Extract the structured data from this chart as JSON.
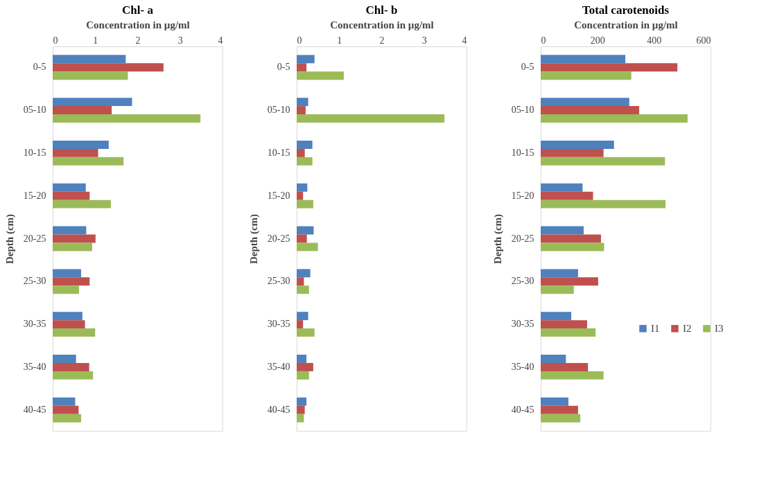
{
  "chart_data": [
    {
      "type": "bar",
      "orientation": "horizontal",
      "title": "Chl- a",
      "xlabel": "Concentration in µg/ml",
      "ylabel": "Depth (cm)",
      "categories": [
        "0-5",
        "05-10",
        "10-15",
        "15-20",
        "20-25",
        "25-30",
        "30-35",
        "35-40",
        "40-45"
      ],
      "xlim": [
        0,
        4
      ],
      "xticks": [
        0,
        1,
        2,
        3,
        4
      ],
      "legend": false,
      "series": [
        {
          "color": "#4f81bd",
          "values": [
            1.72,
            1.87,
            1.32,
            0.78,
            0.79,
            0.67,
            0.7,
            0.55,
            0.53
          ]
        },
        {
          "color": "#c0504d",
          "values": [
            2.61,
            1.39,
            1.07,
            0.87,
            1.01,
            0.87,
            0.76,
            0.86,
            0.61
          ]
        },
        {
          "color": "#9bbb59",
          "values": [
            1.77,
            3.48,
            1.67,
            1.37,
            0.93,
            0.62,
            1.0,
            0.95,
            0.67
          ]
        }
      ]
    },
    {
      "type": "bar",
      "orientation": "horizontal",
      "title": "Chl- b",
      "xlabel": "Concentration in µg/ml",
      "ylabel": "Depth (cm)",
      "categories": [
        "0-5",
        "05-10",
        "10-15",
        "15-20",
        "20-25",
        "25-30",
        "30-35",
        "35-40",
        "40-45"
      ],
      "xlim": [
        0,
        4
      ],
      "xticks": [
        0,
        1,
        2,
        3,
        4
      ],
      "legend": false,
      "series": [
        {
          "color": "#4f81bd",
          "values": [
            0.42,
            0.27,
            0.37,
            0.25,
            0.4,
            0.32,
            0.27,
            0.23,
            0.23
          ]
        },
        {
          "color": "#c0504d",
          "values": [
            0.23,
            0.21,
            0.19,
            0.15,
            0.24,
            0.17,
            0.15,
            0.39,
            0.19
          ]
        },
        {
          "color": "#9bbb59",
          "values": [
            1.11,
            3.48,
            0.37,
            0.39,
            0.5,
            0.29,
            0.42,
            0.29,
            0.17
          ]
        }
      ]
    },
    {
      "type": "bar",
      "orientation": "horizontal",
      "title": "Total carotenoids",
      "xlabel": "Concentration in µg/ml",
      "ylabel": "Depth (cm)",
      "categories": [
        "0-5",
        "05-10",
        "10-15",
        "15-20",
        "20-25",
        "25-30",
        "30-35",
        "35-40",
        "40-45"
      ],
      "xlim": [
        0,
        600
      ],
      "xticks": [
        0,
        200,
        400,
        600
      ],
      "legend": "right",
      "series": [
        {
          "name": "I1",
          "color": "#4f81bd",
          "values": [
            299,
            313,
            259,
            148,
            152,
            132,
            108,
            89,
            98
          ]
        },
        {
          "name": "I2",
          "color": "#c0504d",
          "values": [
            483,
            348,
            222,
            185,
            213,
            203,
            164,
            167,
            132
          ]
        },
        {
          "name": "I3",
          "color": "#9bbb59",
          "values": [
            320,
            519,
            439,
            441,
            224,
            117,
            194,
            222,
            140
          ]
        }
      ]
    }
  ]
}
